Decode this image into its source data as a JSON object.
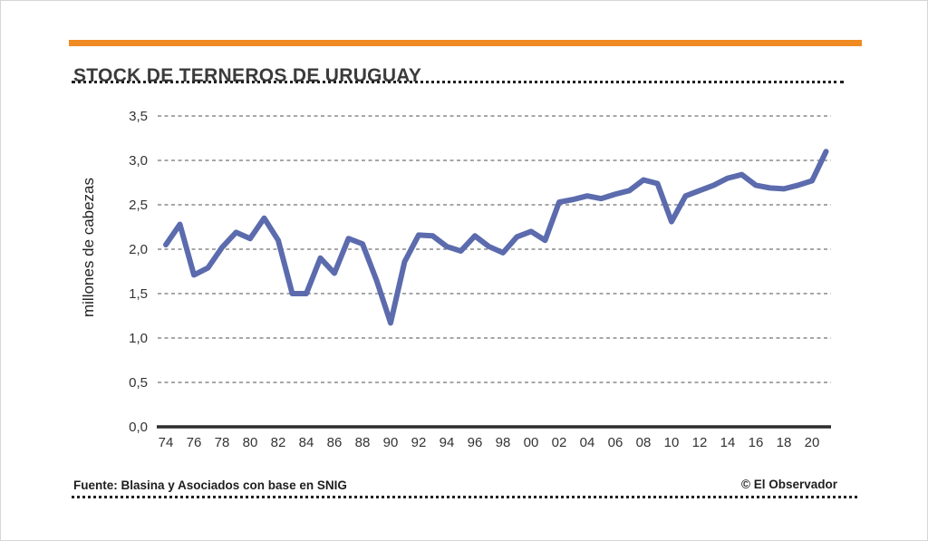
{
  "header": {
    "title": "STOCK DE TERNEROS DE URUGUAY"
  },
  "footer": {
    "source": "Fuente: Blasina y Asociados con base en SNIG",
    "credit": "© El Observador"
  },
  "colors": {
    "accent_bar": "#EF8B22",
    "line": "#5B6BAD",
    "grid": "#8A8A8A",
    "axis": "#2D2D2D",
    "tick_text": "#333333"
  },
  "chart_data": {
    "type": "line",
    "title": "STOCK DE TERNEROS DE URUGUAY",
    "ylabel": "millones de cabezas",
    "xlabel": "",
    "series_name": "Stock de terneros (millones de cabezas)",
    "x": [
      1974,
      1975,
      1976,
      1977,
      1978,
      1979,
      1980,
      1981,
      1982,
      1983,
      1984,
      1985,
      1986,
      1987,
      1988,
      1989,
      1990,
      1991,
      1992,
      1993,
      1994,
      1995,
      1996,
      1997,
      1998,
      1999,
      2000,
      2001,
      2002,
      2003,
      2004,
      2005,
      2006,
      2007,
      2008,
      2009,
      2010,
      2011,
      2012,
      2013,
      2014,
      2015,
      2016,
      2017,
      2018,
      2019,
      2020,
      2021
    ],
    "values": [
      2.05,
      2.28,
      1.71,
      1.79,
      2.02,
      2.19,
      2.12,
      2.35,
      2.1,
      1.5,
      1.5,
      1.9,
      1.73,
      2.12,
      2.06,
      1.65,
      1.17,
      1.86,
      2.16,
      2.15,
      2.03,
      1.98,
      2.15,
      2.03,
      1.96,
      2.14,
      2.2,
      2.1,
      2.53,
      2.56,
      2.6,
      2.57,
      2.62,
      2.66,
      2.78,
      2.74,
      2.31,
      2.6,
      2.66,
      2.72,
      2.8,
      2.84,
      2.72,
      2.69,
      2.68,
      2.72,
      2.77,
      3.1
    ],
    "ylim": [
      0,
      3.5
    ],
    "y_ticks": [
      0.0,
      0.5,
      1.0,
      1.5,
      2.0,
      2.5,
      3.0,
      3.5
    ],
    "y_tick_labels": [
      "0,0",
      "0,5",
      "1,0",
      "1,5",
      "2,0",
      "2,5",
      "3,0",
      "3,5"
    ],
    "x_tick_labels": [
      "74",
      "76",
      "78",
      "80",
      "82",
      "84",
      "86",
      "88",
      "90",
      "92",
      "94",
      "96",
      "98",
      "00",
      "02",
      "04",
      "06",
      "08",
      "10",
      "12",
      "14",
      "16",
      "18",
      "20"
    ],
    "grid": "horizontal dashed",
    "legend": "none"
  }
}
